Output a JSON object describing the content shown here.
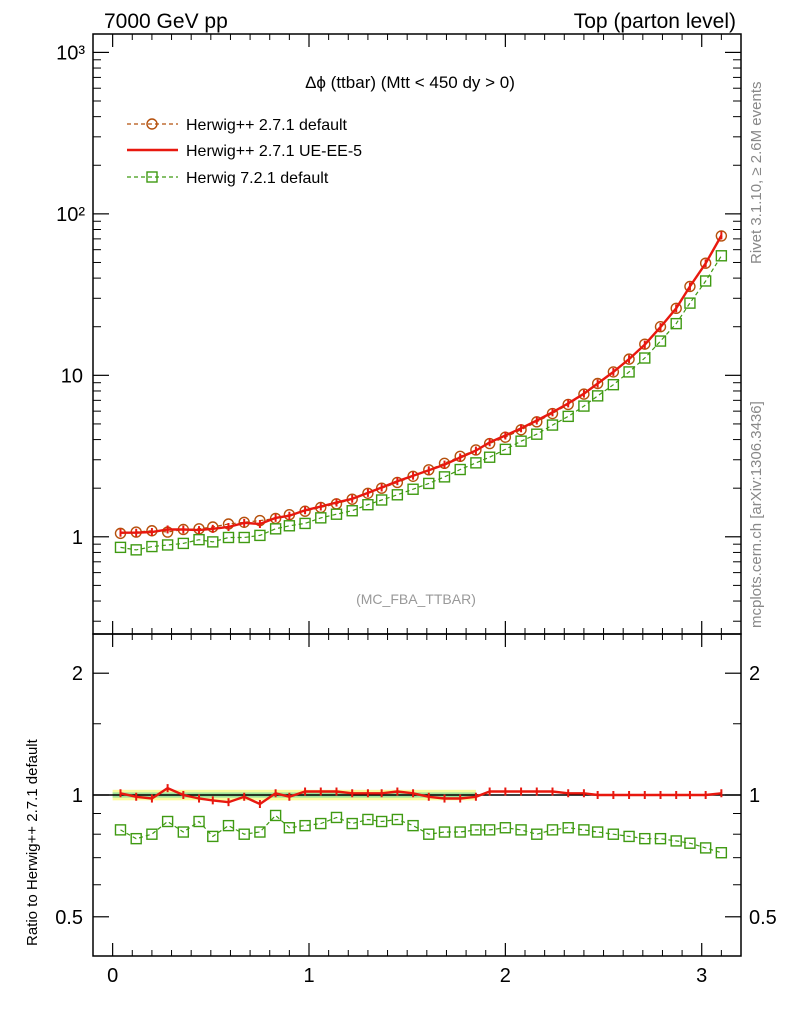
{
  "header": {
    "left": "7000 GeV pp",
    "right": "Top (parton level)"
  },
  "plot_title": "Δϕ (ttbar) (Mtt < 450 dy > 0)",
  "watermark": "(MC_FBA_TTBAR)",
  "side_text": {
    "rivet": "Rivet 3.1.10, ≥ 2.6M events",
    "mcplots": "mcplots.cern.ch [arXiv:1306.3436]"
  },
  "ratio_ylabel": "Ratio to Herwig++ 2.7.1 default",
  "colors": {
    "herwig_default": "#b5500c",
    "ue_ee5": "#e8180f",
    "herwig7": "#3f9a12",
    "band_outer": "#fbfb9c",
    "band_inner": "#9fe39a"
  },
  "chart_data": [
    {
      "type": "line",
      "panel": "main",
      "yscale": "log",
      "xlim": [
        -0.1,
        3.2
      ],
      "ylim": [
        0.25,
        1300
      ],
      "grid": false,
      "legend_position": "top-left",
      "x_ticks": [
        "0",
        "1",
        "2",
        "3"
      ],
      "y_ticks": [
        "1",
        "10",
        "10²",
        "10³"
      ],
      "x": [
        0.04,
        0.12,
        0.2,
        0.28,
        0.36,
        0.44,
        0.51,
        0.59,
        0.67,
        0.75,
        0.83,
        0.9,
        0.98,
        1.06,
        1.14,
        1.22,
        1.3,
        1.37,
        1.45,
        1.53,
        1.61,
        1.69,
        1.77,
        1.85,
        1.92,
        2.0,
        2.08,
        2.16,
        2.24,
        2.32,
        2.4,
        2.47,
        2.55,
        2.63,
        2.71,
        2.79,
        2.87,
        2.94,
        3.02,
        3.1
      ],
      "series": [
        {
          "name": "Herwig++ 2.7.1 default",
          "marker": "circle",
          "dashed": true,
          "colorKey": "herwig_default",
          "values": [
            1.05,
            1.07,
            1.09,
            1.07,
            1.11,
            1.12,
            1.15,
            1.2,
            1.23,
            1.26,
            1.3,
            1.37,
            1.44,
            1.52,
            1.6,
            1.71,
            1.86,
            2.0,
            2.17,
            2.37,
            2.6,
            2.85,
            3.15,
            3.45,
            3.78,
            4.14,
            4.6,
            5.15,
            5.8,
            6.6,
            7.65,
            8.9,
            10.5,
            12.6,
            15.6,
            20.0,
            26.0,
            35.5,
            49.5,
            73.0
          ]
        },
        {
          "name": "Herwig++ 2.7.1 UE-EE-5",
          "marker": "none",
          "dashed": false,
          "colorKey": "ue_ee5",
          "values": [
            1.06,
            1.06,
            1.07,
            1.11,
            1.11,
            1.1,
            1.12,
            1.15,
            1.22,
            1.2,
            1.31,
            1.35,
            1.46,
            1.54,
            1.63,
            1.72,
            1.87,
            2.02,
            2.21,
            2.39,
            2.58,
            2.8,
            3.1,
            3.42,
            3.85,
            4.24,
            4.7,
            5.25,
            5.9,
            6.7,
            7.7,
            8.9,
            10.5,
            12.6,
            15.5,
            19.9,
            26.0,
            35.5,
            49.4,
            73.5
          ]
        },
        {
          "name": "Herwig 7.2.1 default",
          "marker": "square",
          "dashed": true,
          "colorKey": "herwig7",
          "values": [
            0.86,
            0.83,
            0.87,
            0.89,
            0.91,
            0.96,
            0.93,
            0.99,
            0.99,
            1.02,
            1.12,
            1.17,
            1.21,
            1.31,
            1.38,
            1.45,
            1.58,
            1.69,
            1.82,
            1.97,
            2.14,
            2.35,
            2.61,
            2.87,
            3.11,
            3.48,
            3.91,
            4.32,
            4.92,
            5.57,
            6.45,
            7.46,
            8.75,
            10.5,
            12.8,
            16.3,
            20.9,
            28.0,
            38.4,
            55.0
          ]
        }
      ]
    },
    {
      "type": "line",
      "panel": "ratio",
      "yscale": "log",
      "ylabel": "Ratio to Herwig++ 2.7.1 default",
      "xlim": [
        -0.1,
        3.2
      ],
      "ylim": [
        0.4,
        2.5
      ],
      "grid": false,
      "x_ticks": [
        "0",
        "1",
        "2",
        "3"
      ],
      "y_ticks": [
        "0.5",
        "1",
        "2"
      ],
      "band": {
        "outer": [
          0.97,
          1.03
        ],
        "inner": [
          0.985,
          1.015
        ],
        "x_end": 1.85
      },
      "x": [
        0.04,
        0.12,
        0.2,
        0.28,
        0.36,
        0.44,
        0.51,
        0.59,
        0.67,
        0.75,
        0.83,
        0.9,
        0.98,
        1.06,
        1.14,
        1.22,
        1.3,
        1.37,
        1.45,
        1.53,
        1.61,
        1.69,
        1.77,
        1.85,
        1.92,
        2.0,
        2.08,
        2.16,
        2.24,
        2.32,
        2.4,
        2.47,
        2.55,
        2.63,
        2.71,
        2.79,
        2.87,
        2.94,
        3.02,
        3.1
      ],
      "series": [
        {
          "name": "Herwig++ 2.7.1 UE-EE-5",
          "marker": "none",
          "dashed": false,
          "colorKey": "ue_ee5",
          "values": [
            1.01,
            0.99,
            0.98,
            1.04,
            1.0,
            0.98,
            0.97,
            0.96,
            0.99,
            0.95,
            1.01,
            0.99,
            1.02,
            1.02,
            1.02,
            1.01,
            1.01,
            1.01,
            1.02,
            1.01,
            0.99,
            0.98,
            0.98,
            0.99,
            1.02,
            1.02,
            1.02,
            1.02,
            1.02,
            1.01,
            1.01,
            1.0,
            1.0,
            1.0,
            1.0,
            1.0,
            1.0,
            1.0,
            1.0,
            1.01
          ]
        },
        {
          "name": "Herwig 7.2.1 default",
          "marker": "square",
          "dashed": true,
          "colorKey": "herwig7",
          "values": [
            0.82,
            0.78,
            0.8,
            0.86,
            0.81,
            0.86,
            0.79,
            0.84,
            0.8,
            0.81,
            0.89,
            0.83,
            0.84,
            0.85,
            0.88,
            0.85,
            0.87,
            0.86,
            0.87,
            0.84,
            0.8,
            0.81,
            0.81,
            0.82,
            0.82,
            0.83,
            0.82,
            0.8,
            0.82,
            0.83,
            0.82,
            0.81,
            0.8,
            0.79,
            0.78,
            0.78,
            0.77,
            0.76,
            0.74,
            0.72
          ]
        }
      ]
    }
  ]
}
